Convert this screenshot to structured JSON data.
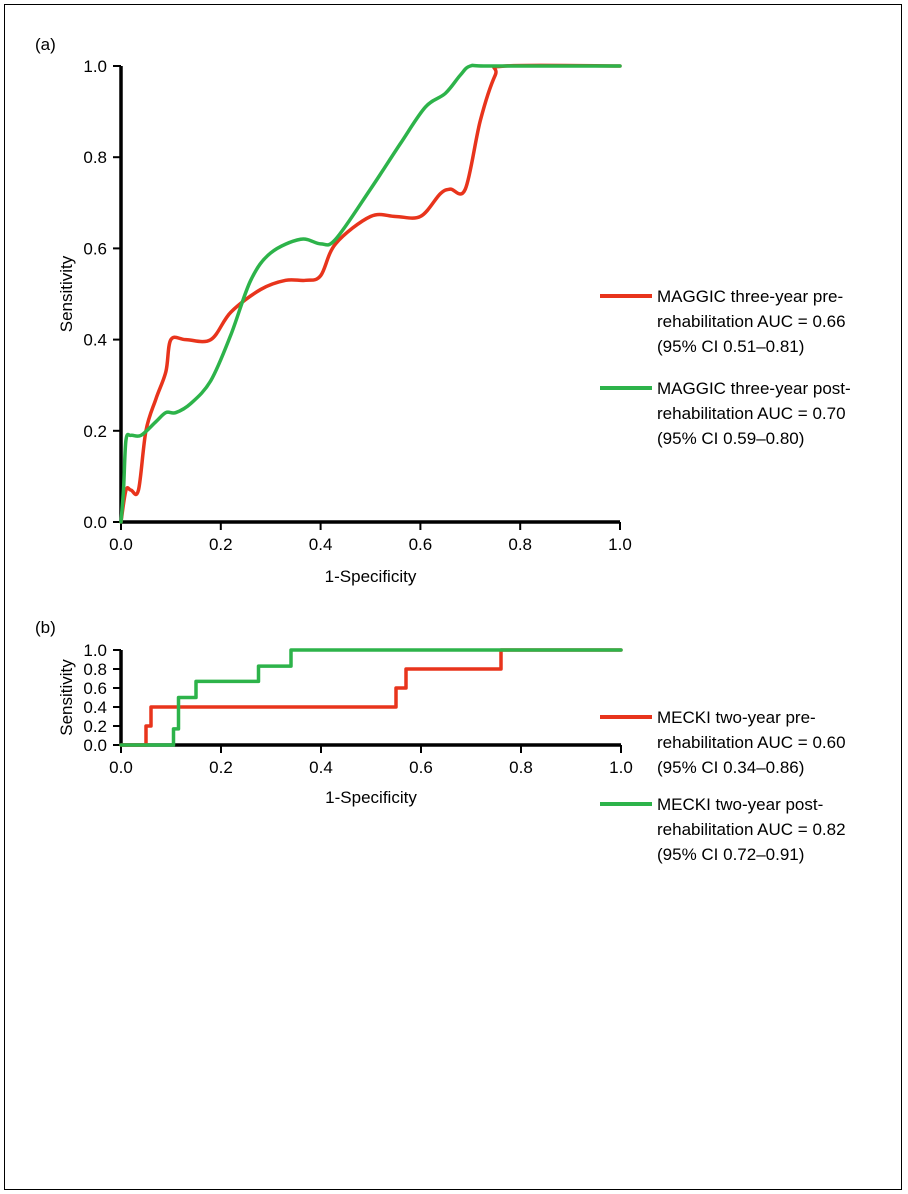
{
  "chart_data": [
    {
      "type": "line",
      "panel_label": "(a)",
      "xlabel": "1-Specificity",
      "ylabel": "Sensitivity",
      "xlim": [
        0,
        1
      ],
      "ylim": [
        0,
        1
      ],
      "xticks": [
        "0.0",
        "0.2",
        "0.4",
        "0.6",
        "0.8",
        "1.0"
      ],
      "yticks": [
        "0.0",
        "0.2",
        "0.4",
        "0.6",
        "0.8",
        "1.0"
      ],
      "grid": false,
      "legend_position": "right",
      "colors": {
        "pre": "#e8341c",
        "post": "#2db34a"
      },
      "series": [
        {
          "name": "MAGGIC three-year pre-rehabilitation AUC = 0.66 (95% CI 0.51–0.81)",
          "legend_lines": [
            "MAGGIC three-year pre-",
            "rehabilitation AUC = 0.66",
            "(95% CI 0.51–0.81)"
          ],
          "color": "#e8341c",
          "x": [
            0,
            0.01,
            0.02,
            0.035,
            0.05,
            0.07,
            0.09,
            0.1,
            0.13,
            0.18,
            0.22,
            0.28,
            0.33,
            0.37,
            0.4,
            0.43,
            0.5,
            0.55,
            0.6,
            0.64,
            0.66,
            0.69,
            0.72,
            0.75,
            0.77,
            1.0
          ],
          "y": [
            0,
            0.07,
            0.07,
            0.07,
            0.2,
            0.27,
            0.33,
            0.4,
            0.4,
            0.4,
            0.46,
            0.51,
            0.53,
            0.53,
            0.54,
            0.61,
            0.67,
            0.67,
            0.67,
            0.72,
            0.73,
            0.73,
            0.88,
            0.98,
            1.0,
            1.0
          ]
        },
        {
          "name": "MAGGIC three-year post-rehabilitation AUC = 0.70 (95% CI 0.59–0.80)",
          "legend_lines": [
            "MAGGIC three-year post-",
            "rehabilitation AUC = 0.70",
            "(95% CI 0.59–0.80)"
          ],
          "color": "#2db34a",
          "x": [
            0,
            0.005,
            0.01,
            0.02,
            0.04,
            0.07,
            0.09,
            0.11,
            0.14,
            0.18,
            0.22,
            0.26,
            0.3,
            0.36,
            0.4,
            0.43,
            0.5,
            0.56,
            0.61,
            0.65,
            0.68,
            0.7,
            0.74,
            1.0
          ],
          "y": [
            0,
            0.07,
            0.18,
            0.19,
            0.19,
            0.22,
            0.24,
            0.24,
            0.26,
            0.31,
            0.41,
            0.53,
            0.59,
            0.62,
            0.61,
            0.62,
            0.73,
            0.83,
            0.91,
            0.94,
            0.98,
            1.0,
            1.0,
            1.0
          ]
        }
      ]
    },
    {
      "type": "line",
      "panel_label": "(b)",
      "xlabel": "1-Specificity",
      "ylabel": "Sensitivity",
      "xlim": [
        0,
        1
      ],
      "ylim": [
        0,
        1
      ],
      "xticks": [
        "0.0",
        "0.2",
        "0.4",
        "0.6",
        "0.8",
        "1.0"
      ],
      "yticks": [
        "0.0",
        "0.2",
        "0.4",
        "0.6",
        "0.8",
        "1.0"
      ],
      "grid": false,
      "legend_position": "right",
      "colors": {
        "pre": "#e8341c",
        "post": "#2db34a"
      },
      "series": [
        {
          "name": "MECKI two-year pre-rehabilitation AUC = 0.60 (95% CI 0.34–0.86)",
          "legend_lines": [
            "MECKI two-year pre-",
            "rehabilitation AUC = 0.60",
            "(95% CI 0.34–0.86)"
          ],
          "color": "#e8341c",
          "x": [
            0,
            0.05,
            0.05,
            0.06,
            0.06,
            0.55,
            0.55,
            0.57,
            0.57,
            0.76,
            0.76,
            1.0
          ],
          "y": [
            0,
            0,
            0.2,
            0.2,
            0.4,
            0.4,
            0.6,
            0.6,
            0.8,
            0.8,
            1.0,
            1.0
          ]
        },
        {
          "name": "MECKI two-year post-rehabilitation AUC = 0.82 (95% CI 0.72–0.91)",
          "legend_lines": [
            "MECKI two-year post-",
            "rehabilitation AUC = 0.82",
            "(95% CI 0.72–0.91)"
          ],
          "color": "#2db34a",
          "x": [
            0,
            0.105,
            0.105,
            0.115,
            0.115,
            0.15,
            0.15,
            0.275,
            0.275,
            0.34,
            0.34,
            1.0
          ],
          "y": [
            0,
            0,
            0.17,
            0.17,
            0.5,
            0.5,
            0.67,
            0.67,
            0.83,
            0.83,
            1.0,
            1.0
          ]
        }
      ]
    }
  ]
}
